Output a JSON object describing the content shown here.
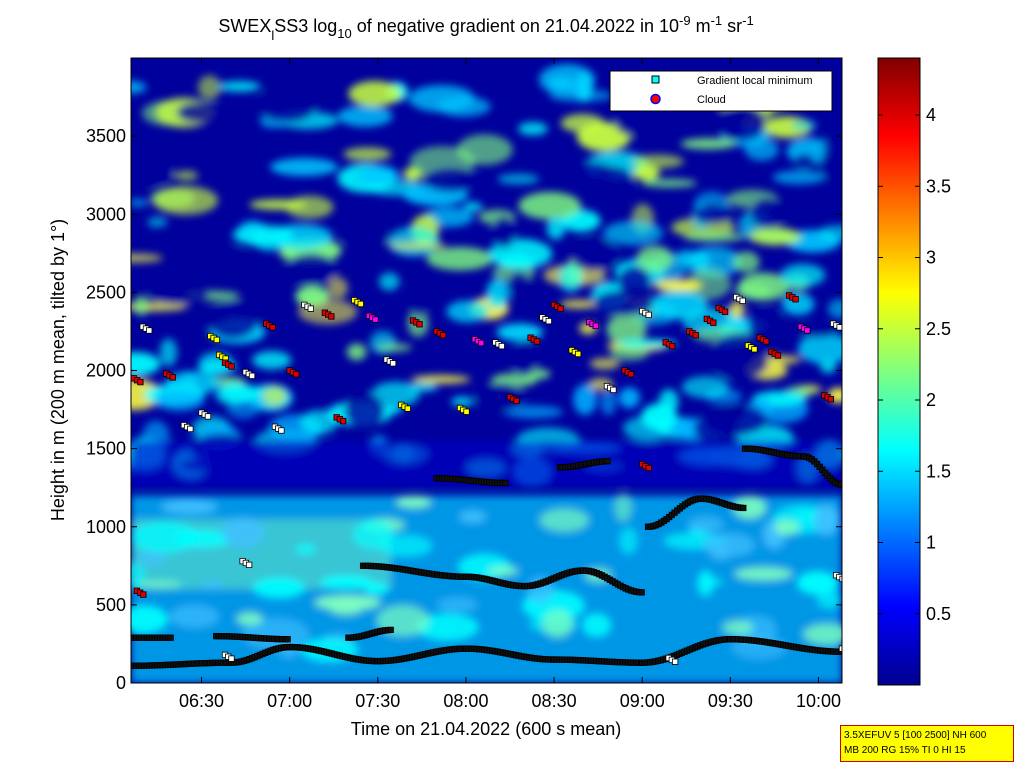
{
  "chart_data": {
    "type": "heatmap",
    "title_parts": {
      "main": "SWEX",
      "sub_l": "l",
      "mid1": "SS3 log",
      "sub_10": "10",
      "mid2": " of negative gradient on 21.04.2022 in 10",
      "sup_m9": "-9",
      "mid3": " m",
      "sup_m1": "-1",
      "mid4": " sr",
      "sup_m1b": "-1"
    },
    "xlabel": "Time on 21.04.2022 (600 s mean)",
    "ylabel": "Height in m (200 m mean, tilted by 1°)",
    "x_ticks": [
      "06:30",
      "07:00",
      "07:30",
      "08:00",
      "08:30",
      "09:00",
      "09:30",
      "10:00"
    ],
    "x_tick_minutes": [
      390,
      420,
      450,
      480,
      510,
      540,
      570,
      600
    ],
    "xlim_minutes": [
      366,
      608
    ],
    "y_ticks": [
      "0",
      "500",
      "1000",
      "1500",
      "2000",
      "2500",
      "3000",
      "3500"
    ],
    "y_tick_values": [
      0,
      500,
      1000,
      1500,
      2000,
      2500,
      3000,
      3500
    ],
    "ylim": [
      0,
      4000
    ],
    "colorbar_ticks": [
      "0.5",
      "1",
      "1.5",
      "2",
      "2.5",
      "3",
      "3.5",
      "4"
    ],
    "colorbar_values": [
      0.5,
      1,
      1.5,
      2,
      2.5,
      3,
      3.5,
      4
    ],
    "colorbar_range": [
      0,
      4.4
    ],
    "colormap": "jet",
    "legend": {
      "position": "top-right",
      "entries": [
        {
          "label": "Gradient local minimum",
          "marker": "square",
          "color": "#00ffff"
        },
        {
          "label": "Cloud",
          "marker": "circle",
          "color": "#ff0000"
        }
      ]
    },
    "marker_bands": [
      {
        "name": "lower-base",
        "t": [
          366,
          400,
          420,
          450,
          480,
          510,
          540,
          570,
          608
        ],
        "h": [
          110,
          130,
          230,
          140,
          220,
          150,
          130,
          280,
          200
        ]
      },
      {
        "name": "low-upper",
        "t": [
          366,
          380,
          380,
          395,
          395,
          420,
          420,
          440,
          440,
          455
        ],
        "h": [
          290,
          290,
          null,
          null,
          300,
          280,
          null,
          null,
          290,
          340
        ]
      },
      {
        "name": "mid-700",
        "t": [
          445,
          480,
          500,
          520,
          540
        ],
        "h": [
          750,
          680,
          620,
          720,
          580
        ]
      },
      {
        "name": "1300-layer",
        "t": [
          470,
          494,
          null,
          512,
          529,
          null,
          542,
          560,
          575
        ],
        "h": [
          1310,
          1280,
          null,
          1380,
          1420,
          null,
          1000,
          1180,
          1120
        ]
      },
      {
        "name": "1500-layer",
        "t": [
          575,
          595,
          608
        ],
        "h": [
          1500,
          1450,
          1270
        ]
      }
    ],
    "scatter_points": [
      {
        "t": 367,
        "h": 1950,
        "c": "cloud"
      },
      {
        "t": 370,
        "h": 2280,
        "c": "min"
      },
      {
        "t": 378,
        "h": 1980,
        "c": "cloud"
      },
      {
        "t": 384,
        "h": 1650,
        "c": "min"
      },
      {
        "t": 390,
        "h": 1730,
        "c": "min"
      },
      {
        "t": 393,
        "h": 2220,
        "c": "yellow"
      },
      {
        "t": 396,
        "h": 2100,
        "c": "yellow"
      },
      {
        "t": 398,
        "h": 2050,
        "c": "cloud"
      },
      {
        "t": 405,
        "h": 1990,
        "c": "min"
      },
      {
        "t": 412,
        "h": 2300,
        "c": "cloud"
      },
      {
        "t": 415,
        "h": 1640,
        "c": "min"
      },
      {
        "t": 420,
        "h": 2000,
        "c": "cloud"
      },
      {
        "t": 425,
        "h": 2420,
        "c": "min"
      },
      {
        "t": 432,
        "h": 2370,
        "c": "cloud"
      },
      {
        "t": 436,
        "h": 1700,
        "c": "cloud"
      },
      {
        "t": 442,
        "h": 2450,
        "c": "yellow"
      },
      {
        "t": 447,
        "h": 2350,
        "c": "magenta"
      },
      {
        "t": 453,
        "h": 2070,
        "c": "min"
      },
      {
        "t": 458,
        "h": 1780,
        "c": "yellow"
      },
      {
        "t": 462,
        "h": 2320,
        "c": "cloud"
      },
      {
        "t": 470,
        "h": 2250,
        "c": "cloud"
      },
      {
        "t": 478,
        "h": 1760,
        "c": "yellow"
      },
      {
        "t": 483,
        "h": 2200,
        "c": "magenta"
      },
      {
        "t": 490,
        "h": 2180,
        "c": "min"
      },
      {
        "t": 495,
        "h": 1830,
        "c": "cloud"
      },
      {
        "t": 502,
        "h": 2210,
        "c": "cloud"
      },
      {
        "t": 506,
        "h": 2340,
        "c": "min"
      },
      {
        "t": 510,
        "h": 2420,
        "c": "cloud"
      },
      {
        "t": 516,
        "h": 2130,
        "c": "yellow"
      },
      {
        "t": 522,
        "h": 2310,
        "c": "magenta"
      },
      {
        "t": 528,
        "h": 1900,
        "c": "min"
      },
      {
        "t": 534,
        "h": 2000,
        "c": "cloud"
      },
      {
        "t": 540,
        "h": 2380,
        "c": "min"
      },
      {
        "t": 540,
        "h": 1400,
        "c": "cloud"
      },
      {
        "t": 548,
        "h": 2180,
        "c": "cloud"
      },
      {
        "t": 556,
        "h": 2250,
        "c": "cloud"
      },
      {
        "t": 562,
        "h": 2330,
        "c": "cloud"
      },
      {
        "t": 566,
        "h": 2400,
        "c": "cloud"
      },
      {
        "t": 572,
        "h": 2470,
        "c": "min"
      },
      {
        "t": 576,
        "h": 2160,
        "c": "yellow"
      },
      {
        "t": 580,
        "h": 2210,
        "c": "cloud"
      },
      {
        "t": 584,
        "h": 2120,
        "c": "cloud"
      },
      {
        "t": 590,
        "h": 2480,
        "c": "cloud"
      },
      {
        "t": 594,
        "h": 2280,
        "c": "magenta"
      },
      {
        "t": 602,
        "h": 1840,
        "c": "cloud"
      },
      {
        "t": 605,
        "h": 2300,
        "c": "min"
      },
      {
        "t": 404,
        "h": 780,
        "c": "min"
      },
      {
        "t": 368,
        "h": 590,
        "c": "cloud"
      },
      {
        "t": 606,
        "h": 690,
        "c": "min"
      },
      {
        "t": 398,
        "h": 180,
        "c": "min"
      },
      {
        "t": 549,
        "h": 160,
        "c": "min"
      },
      {
        "t": 608,
        "h": 220,
        "c": "min"
      }
    ]
  },
  "info_box": {
    "line1": "3.5XEFUV 5 [100 2500] NH 600",
    "line2": "MB 200 RG 15% TI 0 HI 15"
  }
}
